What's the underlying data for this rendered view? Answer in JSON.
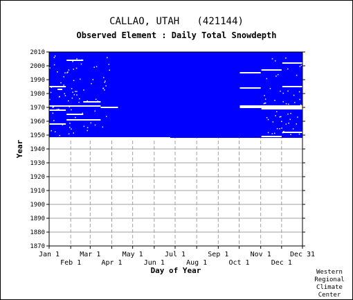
{
  "title": "CALLAO, UTAH   (421144)",
  "subtitle": "Observed Element : Daily Total Snowdepth",
  "credit": [
    "Western",
    "Regional",
    "Climate",
    "Center"
  ],
  "chart_data": {
    "type": "heatmap",
    "xlabel": "Day of Year",
    "ylabel": "Year",
    "x_ticks_top": [
      {
        "label": "Jan 1",
        "day": 1
      },
      {
        "label": "Mar 1",
        "day": 60
      },
      {
        "label": "May 1",
        "day": 121
      },
      {
        "label": "Jul 1",
        "day": 182
      },
      {
        "label": "Sep 1",
        "day": 244
      },
      {
        "label": "Nov 1",
        "day": 305
      },
      {
        "label": "Dec 31",
        "day": 365
      }
    ],
    "x_ticks_bottom": [
      {
        "label": "Feb 1",
        "day": 32
      },
      {
        "label": "Apr 1",
        "day": 91
      },
      {
        "label": "Jun 1",
        "day": 152
      },
      {
        "label": "Aug 1",
        "day": 213
      },
      {
        "label": "Oct 1",
        "day": 274
      },
      {
        "label": "Dec 1",
        "day": 335
      }
    ],
    "xlim": [
      1,
      365
    ],
    "ylim": [
      1870,
      2010
    ],
    "y_ticks": [
      1870,
      1880,
      1890,
      1900,
      1910,
      1920,
      1930,
      1940,
      1950,
      1960,
      1970,
      1980,
      1990,
      2000,
      2010
    ],
    "data_color": "#0000ff",
    "grid_color": "#a0a0a0",
    "coverage": {
      "year_start": 1948,
      "year_end": 2010
    },
    "missing_year_gaps": [
      {
        "year": 1985,
        "day_start": 1,
        "day_end": 25
      },
      {
        "year": 1983,
        "day_start": 13,
        "day_end": 20
      },
      {
        "year": 2004,
        "day_start": 26,
        "day_end": 50
      },
      {
        "year": 1974,
        "day_start": 50,
        "day_end": 75
      },
      {
        "year": 1971,
        "day_start": 1,
        "day_end": 75
      },
      {
        "year": 1970,
        "day_start": 75,
        "day_end": 100
      },
      {
        "year": 1968,
        "day_start": 1,
        "day_end": 25
      },
      {
        "year": 1965,
        "day_start": 26,
        "day_end": 50
      },
      {
        "year": 1961,
        "day_start": 26,
        "day_end": 75
      },
      {
        "year": 1958,
        "day_start": 1,
        "day_end": 25
      },
      {
        "year": 1948,
        "day_start": 1,
        "day_end": 175
      },
      {
        "year": 1995,
        "day_start": 275,
        "day_end": 305
      },
      {
        "year": 1997,
        "day_start": 306,
        "day_end": 335
      },
      {
        "year": 2002,
        "day_start": 336,
        "day_end": 365
      },
      {
        "year": 1984,
        "day_start": 275,
        "day_end": 305
      },
      {
        "year": 1985,
        "day_start": 336,
        "day_end": 365
      },
      {
        "year": 1971,
        "day_start": 275,
        "day_end": 365
      },
      {
        "year": 1970,
        "day_start": 275,
        "day_end": 365
      },
      {
        "year": 1969,
        "day_start": 306,
        "day_end": 365
      },
      {
        "year": 1952,
        "day_start": 336,
        "day_end": 365
      },
      {
        "year": 1949,
        "day_start": 306,
        "day_end": 335
      }
    ]
  }
}
